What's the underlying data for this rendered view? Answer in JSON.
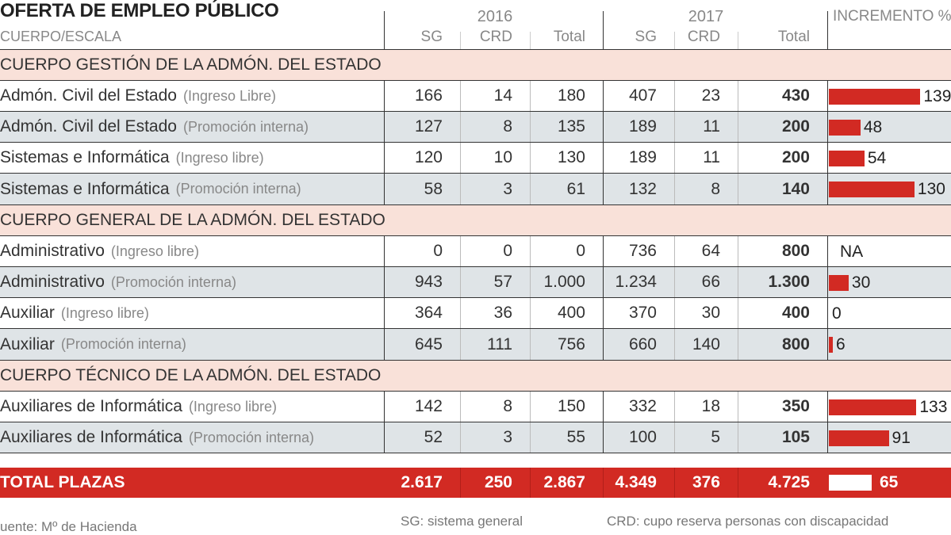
{
  "title": "OFERTA DE EMPLEO PÚBLICO",
  "subtitle": "CUERPO/ESCALA",
  "years": [
    "2016",
    "2017"
  ],
  "column_headers": [
    "SG",
    "CRD",
    "Total",
    "SG",
    "CRD",
    "Total"
  ],
  "increment_header": "INCREMENTO %",
  "colors": {
    "bar": "#d22a23",
    "section_bg": "#f9e1d9",
    "alt_row_bg": "#dfe4e7"
  },
  "chart_data": {
    "type": "table",
    "title": "OFERTA DE EMPLEO PÚBLICO",
    "sections": [
      {
        "name": "CUERPO GESTIÓN DE LA ADMÓN. DEL ESTADO",
        "rows": [
          {
            "label": "Admón. Civil del Estado",
            "sub": "(Ingreso Libre)",
            "values": [
              "166",
              "14",
              "180",
              "407",
              "23",
              "430"
            ],
            "increment": 139,
            "increment_label": "139"
          },
          {
            "label": "Admón. Civil del Estado",
            "sub": "(Promoción interna)",
            "values": [
              "127",
              "8",
              "135",
              "189",
              "11",
              "200"
            ],
            "increment": 48,
            "increment_label": "48"
          },
          {
            "label": "Sistemas e Informática",
            "sub": "(Ingreso libre)",
            "values": [
              "120",
              "10",
              "130",
              "189",
              "11",
              "200"
            ],
            "increment": 54,
            "increment_label": "54"
          },
          {
            "label": "Sistemas e Informática",
            "sub": "(Promoción interna)",
            "values": [
              "58",
              "3",
              "61",
              "132",
              "8",
              "140"
            ],
            "increment": 130,
            "increment_label": "130"
          }
        ]
      },
      {
        "name": "CUERPO GENERAL DE LA ADMÓN. DEL ESTADO",
        "rows": [
          {
            "label": "Administrativo",
            "sub": "(Ingreso libre)",
            "values": [
              "0",
              "0",
              "0",
              "736",
              "64",
              "800"
            ],
            "increment": null,
            "increment_label": "NA"
          },
          {
            "label": "Administrativo",
            "sub": "(Promoción interna)",
            "values": [
              "943",
              "57",
              "1.000",
              "1.234",
              "66",
              "1.300"
            ],
            "increment": 30,
            "increment_label": "30"
          },
          {
            "label": "Auxiliar",
            "sub": "(Ingreso libre)",
            "values": [
              "364",
              "36",
              "400",
              "370",
              "30",
              "400"
            ],
            "increment": 0,
            "increment_label": "0"
          },
          {
            "label": "Auxiliar",
            "sub": "(Promoción interna)",
            "values": [
              "645",
              "111",
              "756",
              "660",
              "140",
              "800"
            ],
            "increment": 6,
            "increment_label": "6"
          }
        ]
      },
      {
        "name": "CUERPO TÉCNICO DE LA ADMÓN. DEL ESTADO",
        "rows": [
          {
            "label": "Auxiliares de Informática",
            "sub": "(Ingreso libre)",
            "values": [
              "142",
              "8",
              "150",
              "332",
              "18",
              "350"
            ],
            "increment": 133,
            "increment_label": "133"
          },
          {
            "label": "Auxiliares de Informática",
            "sub": "(Promoción interna)",
            "values": [
              "52",
              "3",
              "55",
              "100",
              "5",
              "105"
            ],
            "increment": 91,
            "increment_label": "91"
          }
        ]
      }
    ],
    "total": {
      "label": "TOTAL PLAZAS",
      "values": [
        "2.617",
        "250",
        "2.867",
        "4.349",
        "376",
        "4.725"
      ],
      "increment": 65,
      "increment_label": "65"
    }
  },
  "footer": {
    "source": "uente: Mº de Hacienda",
    "sg_note": "SG: sistema general",
    "crd_note": "CRD: cupo reserva personas con discapacidad"
  }
}
